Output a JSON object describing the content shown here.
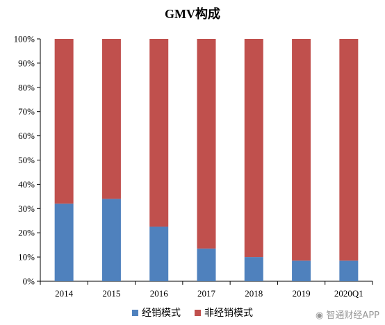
{
  "chart_data": {
    "type": "bar",
    "stacked": true,
    "title": "GMV构成",
    "categories": [
      "2014",
      "2015",
      "2016",
      "2017",
      "2018",
      "2019",
      "2020Q1"
    ],
    "series": [
      {
        "name": "经销模式",
        "color": "#4f81bd",
        "values": [
          32,
          34,
          22.5,
          13.5,
          10,
          8.5,
          8.5
        ]
      },
      {
        "name": "非经销模式",
        "color": "#c0504d",
        "values": [
          68,
          66,
          77.5,
          86.5,
          90,
          91.5,
          91.5
        ]
      }
    ],
    "y_ticks": [
      "0%",
      "10%",
      "20%",
      "30%",
      "40%",
      "50%",
      "60%",
      "70%",
      "80%",
      "90%",
      "100%"
    ],
    "ylim": [
      0,
      100
    ],
    "grid": false,
    "legend": "bottom"
  },
  "watermark": "智通财经APP"
}
